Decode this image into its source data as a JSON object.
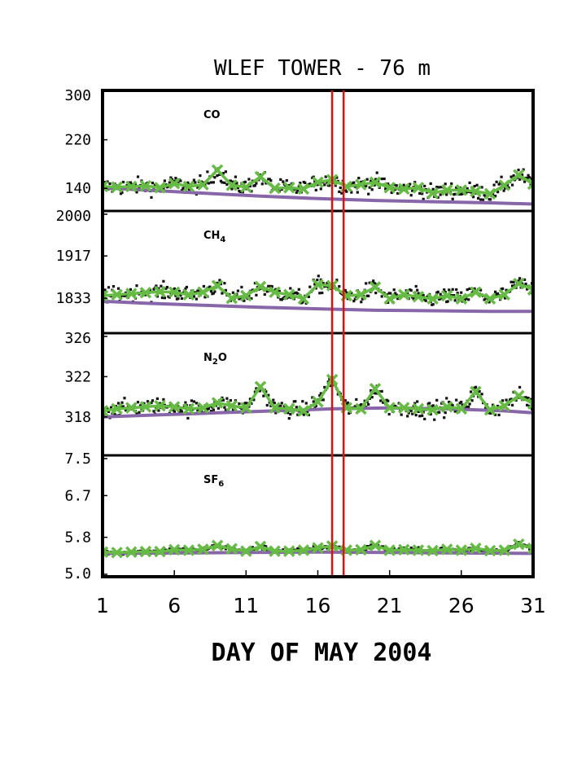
{
  "chart_data": {
    "type": "line",
    "title": "WLEF TOWER - 76 m",
    "xlabel": "DAY OF MAY 2004",
    "xlim": [
      1,
      31
    ],
    "xticks": [
      "1",
      "6",
      "11",
      "16",
      "21",
      "26",
      "31"
    ],
    "grid": false,
    "highlight_days": [
      17.0,
      17.8
    ],
    "colors": {
      "points": "#111111",
      "smoothed": "#66bb44",
      "baseline": "#8866aa",
      "highlight": "#dd1111",
      "frame": "#000000"
    },
    "panels": [
      {
        "name": "CO",
        "label_main": "CO",
        "label_sub": "",
        "label_tail": "",
        "yticks": [
          "300",
          "220",
          "140"
        ],
        "ylim": [
          108,
          300
        ],
        "smoothed": {
          "x": [
            1,
            2,
            3,
            4,
            5,
            6,
            7,
            8,
            9,
            10,
            11,
            12,
            13,
            14,
            15,
            16,
            17,
            18,
            19,
            20,
            21,
            22,
            23,
            24,
            25,
            26,
            27,
            28,
            29,
            30,
            31
          ],
          "y": [
            143,
            142,
            143,
            144,
            141,
            148,
            143,
            146,
            170,
            145,
            142,
            159,
            140,
            141,
            139,
            150,
            154,
            143,
            146,
            150,
            141,
            139,
            141,
            132,
            137,
            137,
            135,
            131,
            145,
            162,
            147
          ]
        },
        "baseline": {
          "x": [
            1,
            4,
            8,
            12,
            16,
            20,
            24,
            28,
            31
          ],
          "y": [
            141,
            137,
            132,
            127,
            123,
            120,
            118,
            116,
            114
          ]
        }
      },
      {
        "name": "CH4",
        "label_main": "CH",
        "label_sub": "4",
        "label_tail": "",
        "yticks": [
          "2000",
          "1917",
          "1833"
        ],
        "ylim": [
          1770,
          2000
        ],
        "smoothed": {
          "x": [
            1,
            2,
            3,
            4,
            5,
            6,
            7,
            8,
            9,
            10,
            11,
            12,
            13,
            14,
            15,
            16,
            17,
            18,
            19,
            20,
            21,
            22,
            23,
            24,
            25,
            26,
            27,
            28,
            29,
            30,
            31
          ],
          "y": [
            1838,
            1840,
            1842,
            1844,
            1846,
            1845,
            1840,
            1845,
            1858,
            1833,
            1838,
            1856,
            1845,
            1840,
            1832,
            1860,
            1858,
            1838,
            1840,
            1855,
            1832,
            1840,
            1836,
            1832,
            1838,
            1832,
            1845,
            1832,
            1840,
            1862,
            1850
          ]
        },
        "baseline": {
          "x": [
            1,
            4,
            8,
            12,
            16,
            20,
            24,
            28,
            31
          ],
          "y": [
            1827,
            1823,
            1819,
            1815,
            1812,
            1809,
            1808,
            1807,
            1807
          ]
        }
      },
      {
        "name": "N2O",
        "label_main": "N",
        "label_sub": "2",
        "label_tail": "O",
        "yticks": [
          "326",
          "322",
          "318"
        ],
        "ylim": [
          314.5,
          326
        ],
        "smoothed": {
          "x": [
            1,
            2,
            3,
            4,
            5,
            6,
            7,
            8,
            9,
            10,
            11,
            12,
            13,
            14,
            15,
            16,
            17,
            18,
            19,
            20,
            21,
            22,
            23,
            24,
            25,
            26,
            27,
            28,
            29,
            30,
            31
          ],
          "y": [
            318.6,
            318.8,
            318.9,
            319.0,
            319.1,
            319.0,
            318.8,
            318.9,
            319.4,
            319.1,
            318.9,
            321.0,
            318.9,
            318.8,
            318.6,
            319.5,
            321.7,
            318.9,
            318.8,
            320.8,
            318.9,
            318.9,
            318.8,
            318.7,
            319.0,
            318.8,
            320.5,
            318.7,
            319.1,
            320.1,
            319.3
          ]
        },
        "baseline": {
          "x": [
            1,
            5,
            9,
            13,
            17,
            21,
            25,
            29,
            31
          ],
          "y": [
            318.0,
            318.2,
            318.4,
            318.6,
            318.8,
            318.9,
            318.8,
            318.6,
            318.4
          ]
        }
      },
      {
        "name": "SF6",
        "label_main": "SF",
        "label_sub": "6",
        "label_tail": "",
        "yticks": [
          "7.5",
          "6.7",
          "5.8",
          "5.0"
        ],
        "ylim": [
          5.0,
          7.5
        ],
        "smoothed": {
          "x": [
            1,
            2,
            3,
            4,
            5,
            6,
            7,
            8,
            9,
            10,
            11,
            12,
            13,
            14,
            15,
            16,
            17,
            18,
            19,
            20,
            21,
            22,
            23,
            24,
            25,
            26,
            27,
            28,
            29,
            30,
            31
          ],
          "y": [
            5.48,
            5.47,
            5.48,
            5.49,
            5.49,
            5.53,
            5.52,
            5.54,
            5.62,
            5.55,
            5.5,
            5.6,
            5.5,
            5.5,
            5.52,
            5.57,
            5.61,
            5.52,
            5.53,
            5.62,
            5.52,
            5.53,
            5.52,
            5.51,
            5.54,
            5.52,
            5.56,
            5.51,
            5.52,
            5.65,
            5.56
          ]
        },
        "baseline": {
          "x": [
            1,
            6,
            11,
            16,
            21,
            26,
            31
          ],
          "y": [
            5.45,
            5.46,
            5.47,
            5.48,
            5.47,
            5.46,
            5.45
          ]
        }
      }
    ]
  }
}
